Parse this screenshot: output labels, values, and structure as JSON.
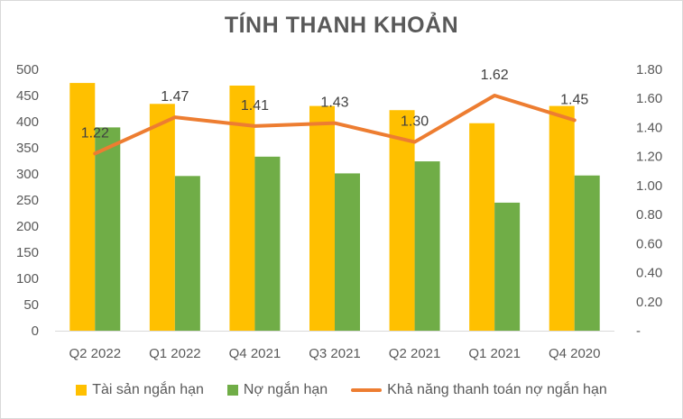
{
  "chart_data": {
    "type": "bar",
    "title": "TÍNH THANH KHOẢN",
    "categories": [
      "Q2 2022",
      "Q1 2022",
      "Q4 2021",
      "Q3 2021",
      "Q2 2021",
      "Q1 2021",
      "Q4 2020"
    ],
    "series": [
      {
        "name": "Tài sản ngắn hạn",
        "type": "bar",
        "axis": "left",
        "color": "#FFC000",
        "values": [
          474,
          434,
          469,
          430,
          422,
          397,
          430
        ]
      },
      {
        "name": "Nợ ngắn hạn",
        "type": "bar",
        "axis": "left",
        "color": "#70AD47",
        "values": [
          389,
          296,
          333,
          301,
          324,
          245,
          297
        ]
      },
      {
        "name": "Khả năng thanh toán nợ ngắn hạn",
        "type": "line",
        "axis": "right",
        "color": "#ED7D31",
        "values": [
          1.22,
          1.47,
          1.41,
          1.43,
          1.3,
          1.62,
          1.45
        ],
        "labels": [
          "1.22",
          "1.47",
          "1.41",
          "1.43",
          "1.30",
          "1.62",
          "1.45"
        ]
      }
    ],
    "y_left": {
      "ylim": [
        0,
        500
      ],
      "ticks": [
        "0",
        "50",
        "100",
        "150",
        "200",
        "250",
        "300",
        "350",
        "400",
        "450",
        "500"
      ]
    },
    "y_right": {
      "ylim": [
        0,
        1.8
      ],
      "ticks": [
        "-",
        "0.20",
        "0.40",
        "0.60",
        "0.80",
        "1.00",
        "1.20",
        "1.40",
        "1.60",
        "1.80"
      ]
    },
    "grid": false,
    "legend_position": "bottom"
  }
}
